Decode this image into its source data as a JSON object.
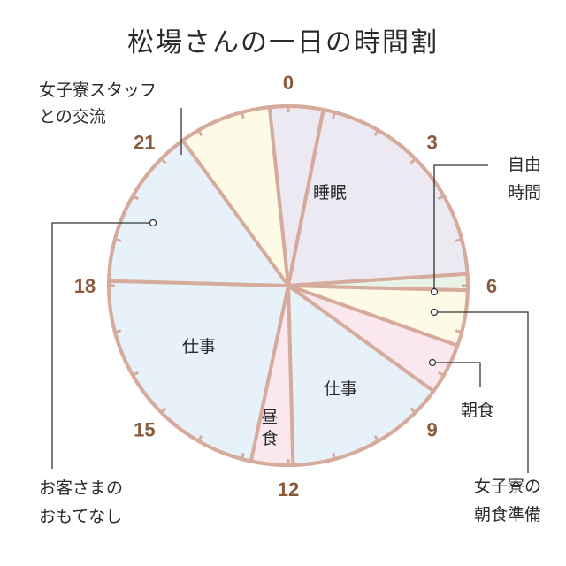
{
  "chart_data": {
    "type": "pie",
    "title": "松場さんの一日の時間割",
    "hour_labels": [
      {
        "hour": 0,
        "text": "0"
      },
      {
        "hour": 3,
        "text": "3"
      },
      {
        "hour": 6,
        "text": "6"
      },
      {
        "hour": 9,
        "text": "9"
      },
      {
        "hour": 12,
        "text": "12"
      },
      {
        "hour": 15,
        "text": "15"
      },
      {
        "hour": 18,
        "text": "18"
      },
      {
        "hour": 21,
        "text": "21"
      }
    ],
    "segments": [
      {
        "id": "sleep",
        "label": [
          "睡眠"
        ],
        "start": 0.75,
        "end": 5.75,
        "color": "#ece9f3"
      },
      {
        "id": "free-time",
        "label": [
          "自由",
          "時間"
        ],
        "start": 5.75,
        "end": 6.1,
        "color": "#e8f2e6"
      },
      {
        "id": "dorm-breakfast-prep",
        "label": [
          "女子寮の",
          "朝食準備"
        ],
        "start": 6.1,
        "end": 7.3,
        "color": "#fdfbe6"
      },
      {
        "id": "breakfast",
        "label": [
          "朝食"
        ],
        "start": 7.3,
        "end": 8.4,
        "color": "#fbe8ee"
      },
      {
        "id": "work-morning",
        "label": [
          "仕事"
        ],
        "start": 8.4,
        "end": 11.9,
        "color": "#e6f1fa"
      },
      {
        "id": "lunch",
        "label": [
          "昼",
          "食"
        ],
        "start": 11.9,
        "end": 12.8,
        "color": "#fbe8ee"
      },
      {
        "id": "work-afternoon",
        "label": [
          "仕事"
        ],
        "start": 12.8,
        "end": 18.1,
        "color": "#e6f1fa"
      },
      {
        "id": "customer-service",
        "label": [
          "お客さまの",
          "おもてなし"
        ],
        "start": 18.1,
        "end": 21.6,
        "color": "#e6f1fa"
      },
      {
        "id": "dorm-staff-exchange",
        "label": [
          "女子寮スタッフ",
          "との交流"
        ],
        "start": 21.6,
        "end": 23.6,
        "color": "#fdfbe6"
      },
      {
        "id": "night-sleep",
        "label": [],
        "start": 23.6,
        "end": 24.75,
        "color": "#ece9f3"
      }
    ],
    "outline_color": "#d6ab9c",
    "hour_label_color": "#8a5a3c"
  }
}
